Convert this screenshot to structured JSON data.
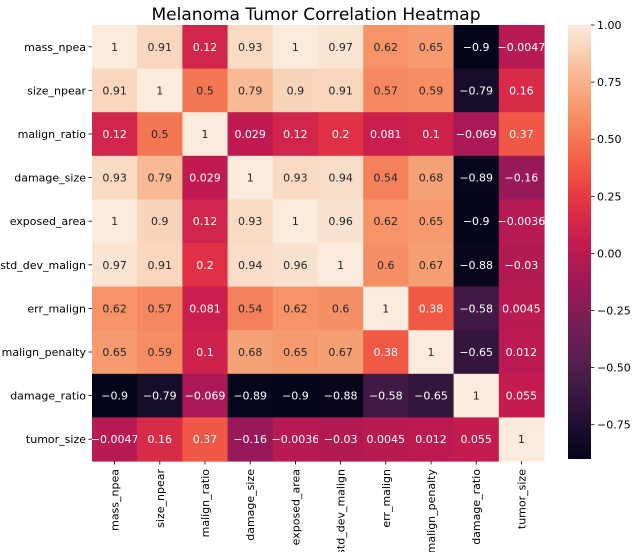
{
  "chart_data": {
    "type": "heatmap",
    "title": "Melanoma Tumor Correlation Heatmap",
    "xlabel": "",
    "ylabel": "",
    "colormap": "rocket",
    "vmin": -0.9,
    "vmax": 1.0,
    "row_labels": [
      "mass_npea",
      "size_npear",
      "malign_ratio",
      "damage_size",
      "exposed_area",
      "std_dev_malign",
      "err_malign",
      "malign_penalty",
      "damage_ratio",
      "tumor_size"
    ],
    "col_labels": [
      "mass_npea",
      "size_npear",
      "malign_ratio",
      "damage_size",
      "exposed_area",
      "std_dev_malign",
      "err_malign",
      "malign_penalty",
      "damage_ratio",
      "tumor_size"
    ],
    "values": [
      [
        1,
        0.91,
        0.12,
        0.93,
        1,
        0.97,
        0.62,
        0.65,
        -0.9,
        -0.0047
      ],
      [
        0.91,
        1,
        0.5,
        0.79,
        0.9,
        0.91,
        0.57,
        0.59,
        -0.79,
        0.16
      ],
      [
        0.12,
        0.5,
        1,
        0.029,
        0.12,
        0.2,
        0.081,
        0.1,
        -0.069,
        0.37
      ],
      [
        0.93,
        0.79,
        0.029,
        1,
        0.93,
        0.94,
        0.54,
        0.68,
        -0.89,
        -0.16
      ],
      [
        1,
        0.9,
        0.12,
        0.93,
        1,
        0.96,
        0.62,
        0.65,
        -0.9,
        -0.0036
      ],
      [
        0.97,
        0.91,
        0.2,
        0.94,
        0.96,
        1,
        0.6,
        0.67,
        -0.88,
        -0.03
      ],
      [
        0.62,
        0.57,
        0.081,
        0.54,
        0.62,
        0.6,
        1,
        0.38,
        -0.58,
        0.0045
      ],
      [
        0.65,
        0.59,
        0.1,
        0.68,
        0.65,
        0.67,
        0.38,
        1,
        -0.65,
        0.012
      ],
      [
        -0.9,
        -0.79,
        -0.069,
        -0.89,
        -0.9,
        -0.88,
        -0.58,
        -0.65,
        1,
        0.055
      ],
      [
        -0.0047,
        0.16,
        0.37,
        -0.16,
        -0.0036,
        -0.03,
        0.0045,
        0.012,
        0.055,
        1
      ]
    ],
    "colorbar": {
      "ticks": [
        1.0,
        0.75,
        0.5,
        0.25,
        0.0,
        -0.25,
        -0.5,
        -0.75
      ],
      "tick_labels": [
        "1.00",
        "0.75",
        "0.50",
        "0.25",
        "0.00",
        "−0.25",
        "−0.50",
        "−0.75"
      ]
    },
    "grid": false,
    "legend": "colorbar-right"
  }
}
